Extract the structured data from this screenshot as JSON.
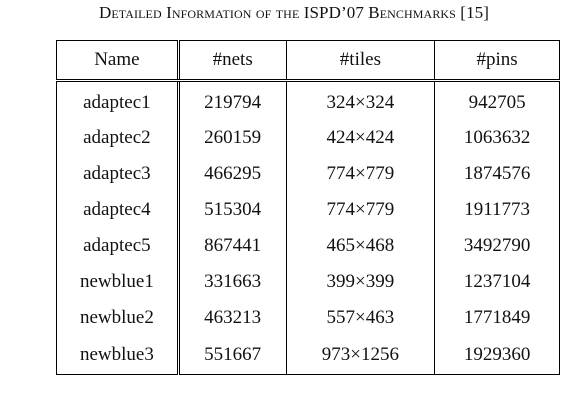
{
  "caption": "Detailed Information of the ISPD’07 Benchmarks [15]",
  "table": {
    "headers": [
      "Name",
      "#nets",
      "#tiles",
      "#pins"
    ],
    "rows": [
      [
        "adaptec1",
        "219794",
        "324×324",
        "942705"
      ],
      [
        "adaptec2",
        "260159",
        "424×424",
        "1063632"
      ],
      [
        "adaptec3",
        "466295",
        "774×779",
        "1874576"
      ],
      [
        "adaptec4",
        "515304",
        "774×779",
        "1911773"
      ],
      [
        "adaptec5",
        "867441",
        "465×468",
        "3492790"
      ],
      [
        "newblue1",
        "331663",
        "399×399",
        "1237104"
      ],
      [
        "newblue2",
        "463213",
        "557×463",
        "1771849"
      ],
      [
        "newblue3",
        "551667",
        "973×1256",
        "1929360"
      ]
    ]
  }
}
